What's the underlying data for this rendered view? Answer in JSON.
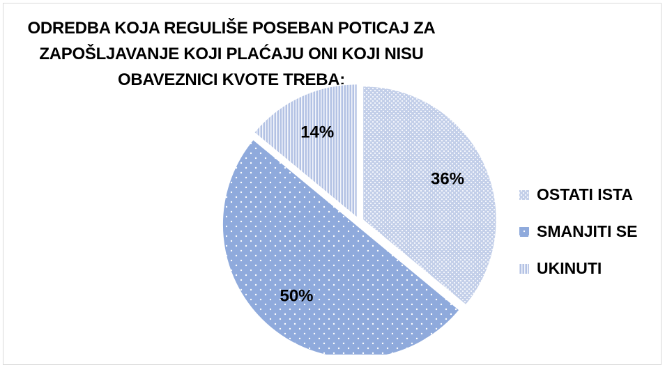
{
  "chart_data": {
    "type": "pie",
    "title": "ODREDBA KOJA REGULIŠE POSEBAN POTICAJ ZA ZAPOŠLJAVANJE KOJI PLAĆAJU ONI KOJI NISU OBAVEZNICI KVOTE TREBA:",
    "categories": [
      "OSTATI ISTA",
      "SMANJITI SE",
      "UKINUTI"
    ],
    "values": [
      36,
      50,
      14
    ],
    "value_labels": [
      "36%",
      "50%",
      "14%"
    ],
    "colors": [
      "#c3cfe9",
      "#8faadc",
      "#b3c2e4"
    ],
    "legend": "right"
  }
}
